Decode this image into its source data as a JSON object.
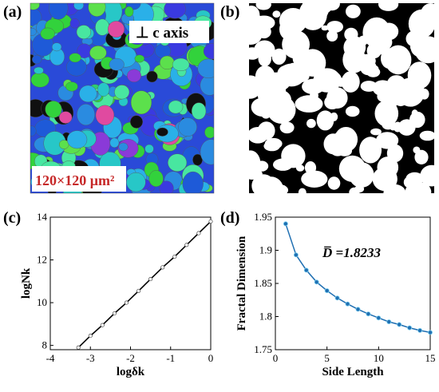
{
  "panels": {
    "a": {
      "label": "(a)",
      "annotation_axis": "⊥ c axis",
      "scale_text": "120×120 μm²"
    },
    "b": {
      "label": "(b)"
    },
    "c": {
      "label": "(c)"
    },
    "d": {
      "label": "(d)",
      "annotation": "D̅ =1.8233"
    }
  },
  "chart_data": [
    {
      "type": "line",
      "panel": "c",
      "xlabel": "logδk",
      "ylabel": "logNk",
      "xlim": [
        -4,
        0
      ],
      "ylim": [
        7.8,
        14
      ],
      "xticks": [
        "-4",
        "-3",
        "-2",
        "-1",
        "0"
      ],
      "yticks": [
        "8",
        "10",
        "12",
        "14"
      ],
      "series": [
        {
          "points": [
            [
              -3.3,
              7.9
            ],
            [
              -3.0,
              8.45
            ],
            [
              -2.7,
              8.95
            ],
            [
              -2.4,
              9.5
            ],
            [
              -2.1,
              10.0
            ],
            [
              -1.8,
              10.55
            ],
            [
              -1.5,
              11.1
            ],
            [
              -1.2,
              11.65
            ],
            [
              -0.9,
              12.15
            ],
            [
              -0.6,
              12.7
            ],
            [
              -0.3,
              13.25
            ],
            [
              0.0,
              13.8
            ]
          ]
        }
      ]
    },
    {
      "type": "line",
      "panel": "d",
      "xlabel": "Side Length",
      "ylabel": "Fractal Dimension",
      "xlim": [
        0,
        15
      ],
      "ylim": [
        1.75,
        1.95
      ],
      "xticks": [
        "0",
        "5",
        "10",
        "15"
      ],
      "yticks": [
        "1.75",
        "1.8",
        "1.85",
        "1.9",
        "1.95"
      ],
      "series": [
        {
          "x": [
            1,
            2,
            3,
            4,
            5,
            6,
            7,
            8,
            9,
            10,
            11,
            12,
            13,
            14,
            15
          ],
          "values": [
            1.94,
            1.893,
            1.87,
            1.852,
            1.839,
            1.828,
            1.819,
            1.811,
            1.804,
            1.798,
            1.792,
            1.788,
            1.783,
            1.779,
            1.776
          ],
          "color": "#1f6fb2"
        }
      ]
    }
  ]
}
